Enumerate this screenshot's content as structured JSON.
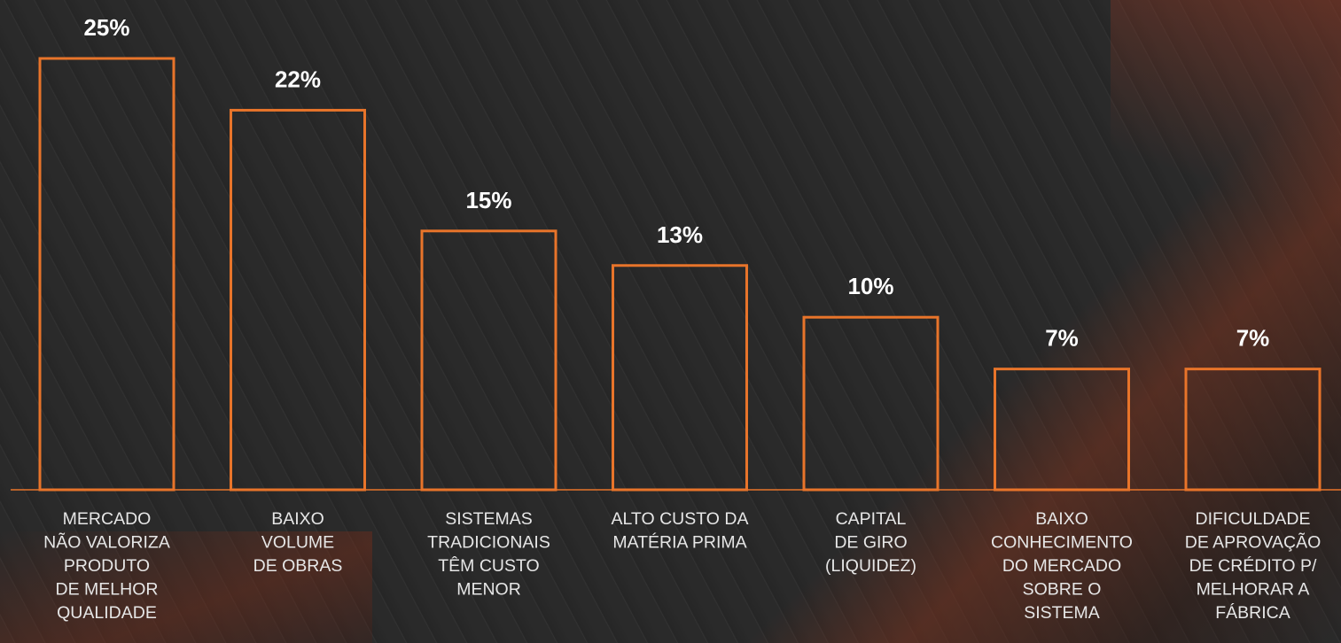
{
  "chart_data": {
    "type": "bar",
    "categories": [
      [
        "MERCADO",
        "NÃO VALORIZA",
        "PRODUTO",
        "DE MELHOR",
        "QUALIDADE"
      ],
      [
        "BAIXO",
        "VOLUME",
        "DE OBRAS"
      ],
      [
        "SISTEMAS",
        "TRADICIONAIS",
        "TÊM CUSTO",
        "MENOR"
      ],
      [
        "ALTO CUSTO DA",
        "MATÉRIA PRIMA"
      ],
      [
        "CAPITAL",
        "DE GIRO",
        "(LIQUIDEZ)"
      ],
      [
        "BAIXO",
        "CONHECIMENTO",
        "DO MERCADO",
        "SOBRE O",
        "SISTEMA"
      ],
      [
        "DIFICULDADE",
        "DE APROVAÇÃO",
        "DE CRÉDITO P/",
        "MELHORAR A",
        "FÁBRICA"
      ]
    ],
    "values": [
      25,
      22,
      15,
      13,
      10,
      7,
      7
    ],
    "value_labels": [
      "25%",
      "22%",
      "15%",
      "13%",
      "10%",
      "7%",
      "7%"
    ],
    "ylim": [
      0,
      25
    ],
    "grid": false,
    "bar_style": "outline",
    "bar_color": "#e8742a",
    "baseline_color": "#e8742a",
    "label_color": "#ffffff"
  }
}
